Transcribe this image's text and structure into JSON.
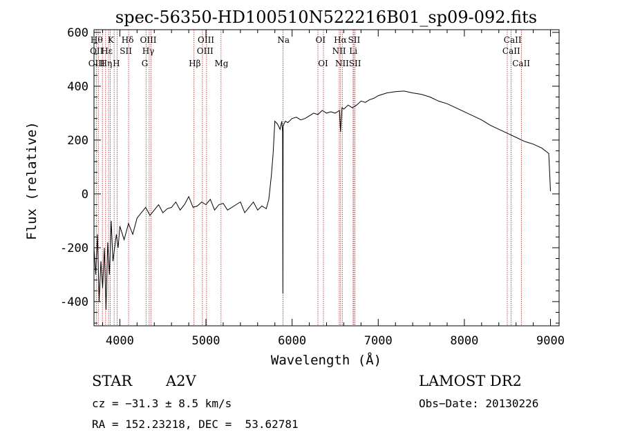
{
  "chart_data": {
    "type": "line",
    "title": "spec-56350-HD100510N522216B01_sp09-092.fits",
    "xlabel": "Wavelength (Å)",
    "ylabel": "Flux (relative)",
    "xlim": [
      3700,
      9100
    ],
    "ylim": [
      -490,
      610
    ],
    "xticks": [
      4000,
      5000,
      6000,
      7000,
      8000,
      9000
    ],
    "yticks": [
      -400,
      -200,
      0,
      200,
      400,
      600
    ],
    "xtick_labels": [
      "4000",
      "5000",
      "6000",
      "7000",
      "8000",
      "9000"
    ],
    "ytick_labels": [
      "-400",
      "-200",
      "0",
      "200",
      "400",
      "600"
    ],
    "grid": false,
    "series": [
      {
        "x": [
          3700,
          3720,
          3740,
          3760,
          3780,
          3800,
          3820,
          3840,
          3860,
          3880,
          3900,
          3920,
          3940,
          3960,
          3980,
          4000,
          4050,
          4100,
          4150,
          4200,
          4250,
          4300,
          4350,
          4400,
          4450,
          4500,
          4550,
          4600,
          4650,
          4700,
          4750,
          4800,
          4850,
          4900,
          4950,
          5000,
          5050,
          5100,
          5150,
          5200,
          5250,
          5300,
          5350,
          5400,
          5450,
          5500,
          5550,
          5600,
          5650,
          5700,
          5730,
          5760,
          5780,
          5800,
          5830,
          5860,
          5880,
          5890,
          5893,
          5896,
          5900,
          5920,
          5950,
          6000,
          6050,
          6100,
          6150,
          6200,
          6250,
          6300,
          6350,
          6400,
          6450,
          6500,
          6550,
          6562,
          6580,
          6600,
          6650,
          6700,
          6750,
          6800,
          6850,
          6900,
          6950,
          7000,
          7050,
          7100,
          7200,
          7300,
          7400,
          7500,
          7600,
          7700,
          7800,
          7900,
          8000,
          8100,
          8200,
          8300,
          8400,
          8500,
          8600,
          8700,
          8800,
          8900,
          8980,
          8990,
          9000
        ],
        "y": [
          -200,
          -300,
          -150,
          -400,
          -250,
          -350,
          -200,
          -430,
          -180,
          -300,
          -100,
          -250,
          -200,
          -150,
          -200,
          -120,
          -170,
          -110,
          -150,
          -90,
          -70,
          -50,
          -80,
          -60,
          -40,
          -70,
          -55,
          -50,
          -30,
          -60,
          -40,
          -10,
          -50,
          -45,
          -30,
          -40,
          -20,
          -60,
          -40,
          -35,
          -60,
          -50,
          -40,
          -30,
          -70,
          -50,
          -30,
          -60,
          -45,
          -55,
          -20,
          70,
          150,
          270,
          260,
          240,
          270,
          230,
          -370,
          250,
          255,
          270,
          265,
          280,
          285,
          275,
          280,
          290,
          300,
          295,
          310,
          300,
          305,
          300,
          310,
          230,
          320,
          315,
          330,
          320,
          330,
          345,
          340,
          350,
          355,
          365,
          370,
          375,
          380,
          382,
          375,
          370,
          360,
          345,
          335,
          320,
          305,
          290,
          275,
          255,
          240,
          225,
          210,
          195,
          185,
          170,
          150,
          80,
          10
        ]
      }
    ],
    "annotations": {
      "row1": [
        "Hθ",
        "K",
        "Hδ",
        "OIII",
        "OIII",
        "Na",
        "OI",
        "Hα",
        "SII",
        "CaII"
      ],
      "row2": [
        "OII",
        "Hε",
        "SII",
        "Hγ",
        "OIII",
        "NII",
        "Li",
        "CaII"
      ],
      "row3": [
        "OIII",
        "Hη",
        "H",
        "G",
        "Hβ",
        "Mg",
        "OI",
        "NII",
        "SII",
        "CaII"
      ]
    },
    "line_markers": [
      3727,
      3750,
      3798,
      3835,
      3869,
      3889,
      3934,
      3969,
      4102,
      4304,
      4341,
      4363,
      4861,
      4959,
      5007,
      5175,
      5894,
      6300,
      6364,
      6548,
      6563,
      6583,
      6708,
      6717,
      6731,
      8498,
      8542,
      8662
    ]
  },
  "info": {
    "object_type": "STAR",
    "subclass": "A2V",
    "survey": "LAMOST DR2",
    "cz": "cz = −31.3 ± 8.5 km/s",
    "obs_date": "Obs−Date: 20130226",
    "coords": "RA = 152.23218, DEC =  53.62781"
  },
  "colors": {
    "marker": "#b02020",
    "ink": "#000000"
  }
}
